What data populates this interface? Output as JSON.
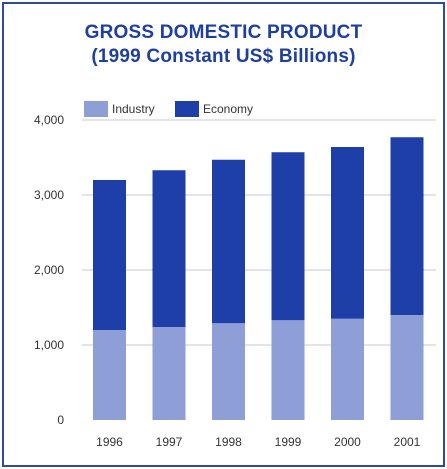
{
  "chart_data": {
    "type": "bar",
    "stacked": true,
    "title": "GROSS DOMESTIC PRODUCT",
    "subtitle": "(1999 Constant US$ Billions)",
    "categories": [
      "1996",
      "1997",
      "1998",
      "1999",
      "2000",
      "2001"
    ],
    "series": [
      {
        "name": "Industry",
        "values": [
          1200,
          1240,
          1290,
          1330,
          1350,
          1400
        ],
        "color": "#8d9fd6"
      },
      {
        "name": "Economy",
        "values": [
          2000,
          2090,
          2180,
          2240,
          2290,
          2370
        ],
        "color": "#1f3fa8"
      }
    ],
    "totals": [
      3200,
      3330,
      3470,
      3570,
      3640,
      3770
    ],
    "y_ticks": [
      "0",
      "1,000",
      "2,000",
      "3,000",
      "4,000"
    ],
    "ylim": [
      0,
      4000
    ],
    "grid": true,
    "legend_position": "top-left",
    "xlabel": "",
    "ylabel": ""
  }
}
